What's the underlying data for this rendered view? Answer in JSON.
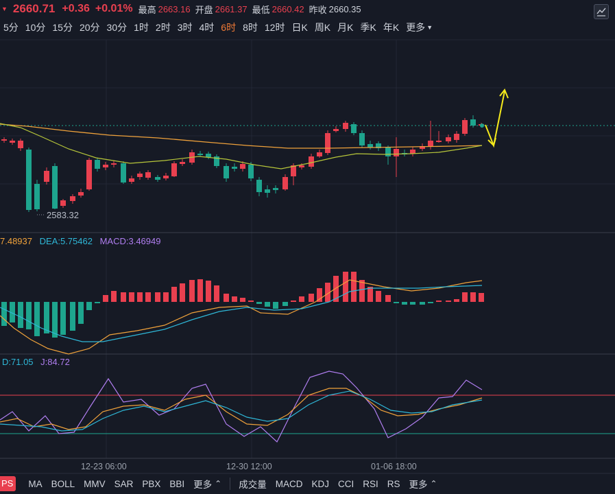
{
  "quote": {
    "price": "2660.71",
    "change": "+0.36",
    "change_pct": "+0.01%",
    "high_label": "最高",
    "high": "2663.16",
    "open_label": "开盘",
    "open": "2661.37",
    "low_label": "最低",
    "low": "2660.42",
    "prev_close_label": "昨收",
    "prev_close": "2660.35",
    "up_color": "#e9404f",
    "down_color": "#1ea58e"
  },
  "periods": [
    {
      "label": "5分"
    },
    {
      "label": "10分"
    },
    {
      "label": "15分"
    },
    {
      "label": "20分"
    },
    {
      "label": "30分"
    },
    {
      "label": "1时"
    },
    {
      "label": "2时"
    },
    {
      "label": "3时"
    },
    {
      "label": "4时"
    },
    {
      "label": "6时",
      "active": true
    },
    {
      "label": "8时"
    },
    {
      "label": "12时"
    },
    {
      "label": "日K"
    },
    {
      "label": "周K"
    },
    {
      "label": "月K"
    },
    {
      "label": "季K"
    },
    {
      "label": "年K"
    },
    {
      "label": "更多"
    }
  ],
  "price_chart": {
    "min_label": "2583.32"
  },
  "macd": {
    "dif_label": "7.48937",
    "dea_label": "DEA:5.75462",
    "macd_label": "MACD:3.46949",
    "dif_color": "#f0a23b",
    "dea_color": "#2fb8d8",
    "macd_color": "#b07ef0"
  },
  "kdj": {
    "d_label": "D:71.05",
    "j_label": "J:84.72",
    "d_color": "#2fb8d8",
    "j_color": "#b07ef0"
  },
  "time_axis": [
    "12-23 06:00",
    "12-30 12:00",
    "01-06 18:00"
  ],
  "bottom_left": {
    "chip": "PS",
    "items": [
      "MA",
      "BOLL",
      "MMV",
      "SAR",
      "PBX",
      "BBI",
      "更多"
    ]
  },
  "bottom_right": {
    "items": [
      "成交量",
      "MACD",
      "KDJ",
      "CCI",
      "RSI",
      "RS",
      "更多"
    ]
  }
}
